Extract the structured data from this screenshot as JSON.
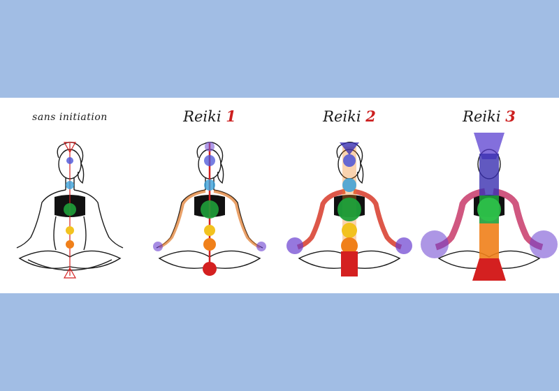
{
  "panels": [
    {
      "title": "sans initiation",
      "number": ""
    },
    {
      "title": "Reiki",
      "number": "1"
    },
    {
      "title": "Reiki",
      "number": "2"
    },
    {
      "title": "Reiki",
      "number": "3"
    }
  ],
  "colors": {
    "background": "#a1bde4",
    "band": "#ffffff",
    "number": "#cc1f1f",
    "outline": "#1a1a1a",
    "top": "#3a2fb0",
    "brow": "#4a54d8",
    "throat": "#3aa0d8",
    "heart": "#1fa03a",
    "solar": "#f2c21f",
    "sacral": "#f0801a",
    "root": "#d42020",
    "hands": "#6a3fd0"
  }
}
